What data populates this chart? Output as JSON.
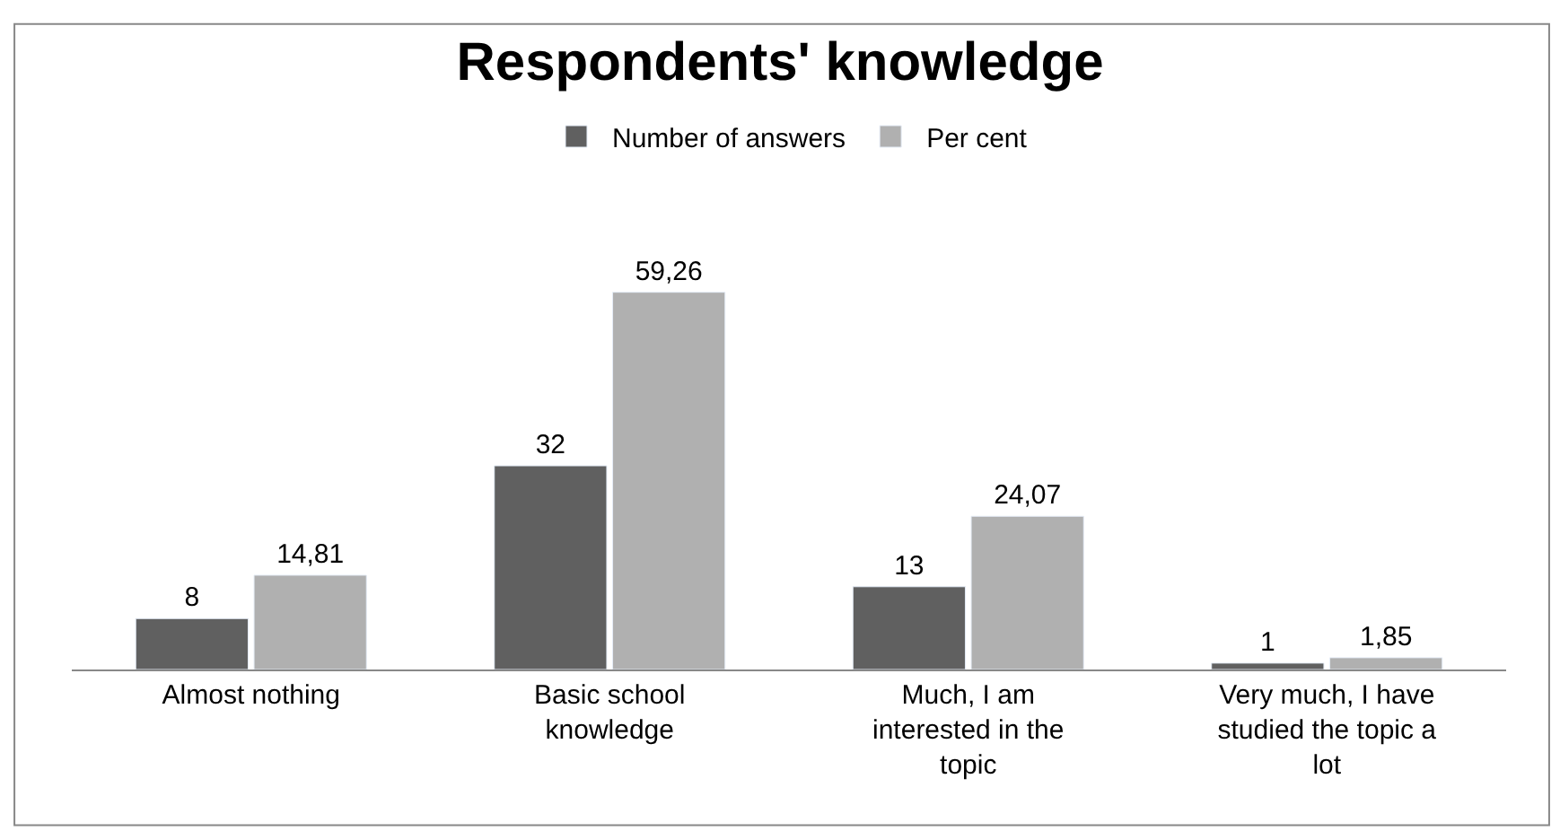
{
  "chart_data": {
    "type": "bar",
    "title": "Respondents' knowledge",
    "categories": [
      "Almost nothing",
      "Basic school knowledge",
      "Much, I am interested in the topic",
      "Very much, I have studied the topic a lot"
    ],
    "series": [
      {
        "name": "Number of answers",
        "color": "#606060",
        "values": [
          8,
          32,
          13,
          1
        ],
        "value_labels": [
          "8",
          "32",
          "13",
          "1"
        ]
      },
      {
        "name": "Per cent",
        "color": "#b0b0b0",
        "values": [
          14.81,
          59.26,
          24.07,
          1.85
        ],
        "value_labels": [
          "14,81",
          "59,26",
          "24,07",
          "1,85"
        ]
      }
    ],
    "legend": "top"
  }
}
